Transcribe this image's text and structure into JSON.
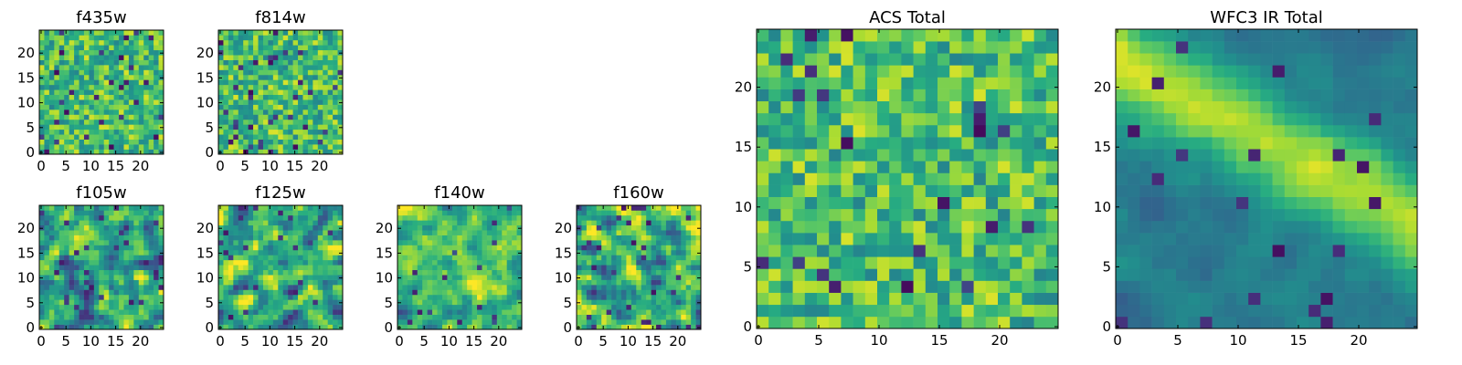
{
  "chart_data": [
    {
      "type": "heatmap",
      "title": "f435w",
      "grid": "25x25",
      "xlim": [
        0,
        25
      ],
      "ylim": [
        0,
        25
      ],
      "xticks": [
        0,
        5,
        10,
        15,
        20
      ],
      "yticks": [
        0,
        5,
        10,
        15,
        20
      ],
      "colormap": "viridis",
      "pattern": "uniform-noise"
    },
    {
      "type": "heatmap",
      "title": "f814w",
      "grid": "25x25",
      "xlim": [
        0,
        25
      ],
      "ylim": [
        0,
        25
      ],
      "xticks": [
        0,
        5,
        10,
        15,
        20
      ],
      "yticks": [
        0,
        5,
        10,
        15,
        20
      ],
      "colormap": "viridis",
      "pattern": "uniform-noise"
    },
    {
      "type": "heatmap",
      "title": "f105w",
      "grid": "25x25",
      "xlim": [
        0,
        25
      ],
      "ylim": [
        0,
        25
      ],
      "xticks": [
        0,
        5,
        10,
        15,
        20
      ],
      "yticks": [
        0,
        5,
        10,
        15,
        20
      ],
      "colormap": "viridis",
      "pattern": "smooth-noise"
    },
    {
      "type": "heatmap",
      "title": "f125w",
      "grid": "25x25",
      "xlim": [
        0,
        25
      ],
      "ylim": [
        0,
        25
      ],
      "xticks": [
        0,
        5,
        10,
        15,
        20
      ],
      "yticks": [
        0,
        5,
        10,
        15,
        20
      ],
      "colormap": "viridis",
      "pattern": "smooth-noise"
    },
    {
      "type": "heatmap",
      "title": "f140w",
      "grid": "25x25",
      "xlim": [
        0,
        25
      ],
      "ylim": [
        0,
        25
      ],
      "xticks": [
        0,
        5,
        10,
        15,
        20
      ],
      "yticks": [
        0,
        5,
        10,
        15,
        20
      ],
      "colormap": "viridis",
      "pattern": "smooth-bright"
    },
    {
      "type": "heatmap",
      "title": "f160w",
      "grid": "25x25",
      "xlim": [
        0,
        25
      ],
      "ylim": [
        0,
        25
      ],
      "xticks": [
        0,
        5,
        10,
        15,
        20
      ],
      "yticks": [
        0,
        5,
        10,
        15,
        20
      ],
      "colormap": "viridis",
      "pattern": "smooth-noise"
    },
    {
      "type": "heatmap",
      "title": "ACS Total",
      "grid": "25x25",
      "xlim": [
        0,
        25
      ],
      "ylim": [
        0,
        25
      ],
      "xticks": [
        0,
        5,
        10,
        15,
        20
      ],
      "yticks": [
        0,
        5,
        10,
        15,
        20
      ],
      "colormap": "viridis",
      "pattern": "uniform-noise"
    },
    {
      "type": "heatmap",
      "title": "WFC3 IR Total",
      "grid": "25x25",
      "xlim": [
        0,
        25
      ],
      "ylim": [
        0,
        25
      ],
      "xticks": [
        0,
        5,
        10,
        15,
        20
      ],
      "yticks": [
        0,
        5,
        10,
        15,
        20
      ],
      "colormap": "viridis",
      "pattern": "diagonal-band"
    }
  ]
}
